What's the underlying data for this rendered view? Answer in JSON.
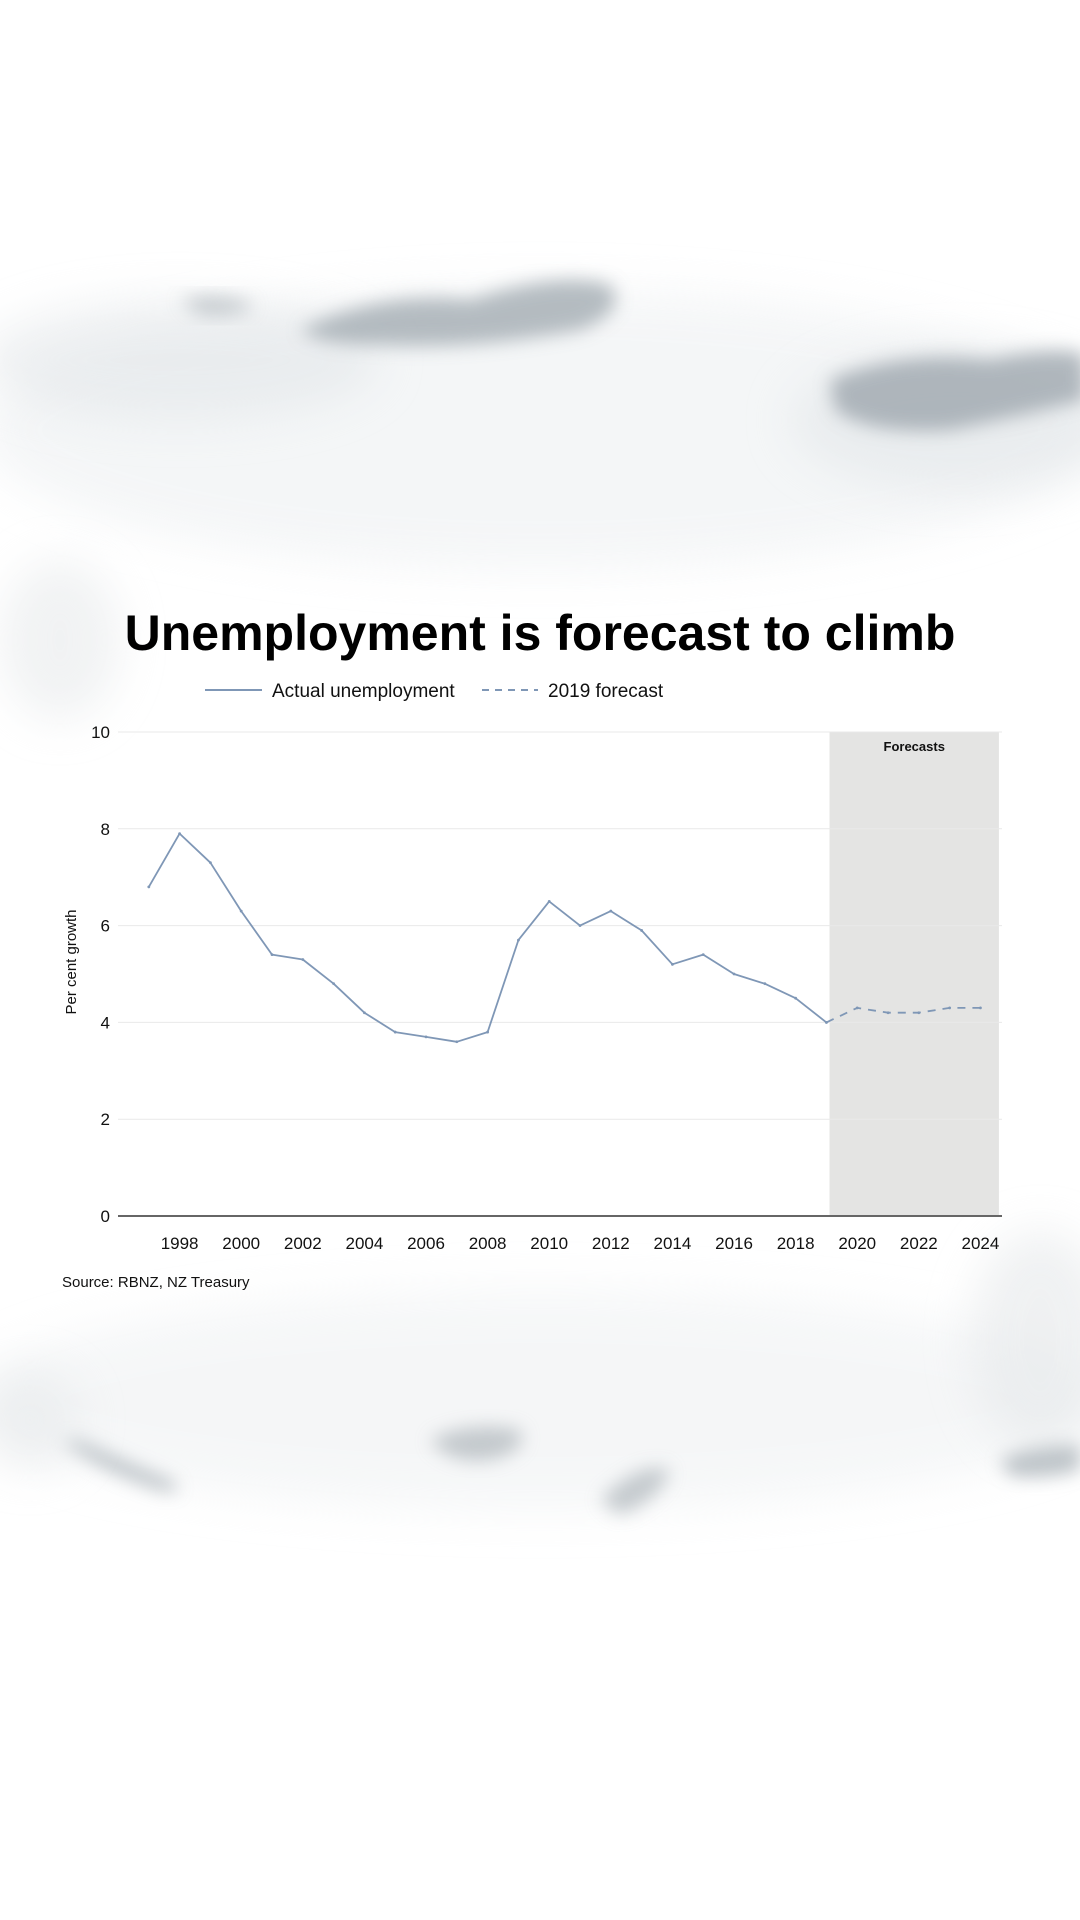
{
  "chart_data": {
    "type": "line",
    "title": "Unemployment is forecast to climb",
    "ylabel": "Per cent growth",
    "xlabel": "",
    "ylim": [
      0,
      10
    ],
    "xlim": [
      1996,
      2024.7
    ],
    "y_ticks": [
      0,
      2,
      4,
      6,
      8,
      10
    ],
    "x_ticks": [
      1998,
      2000,
      2002,
      2004,
      2006,
      2008,
      2010,
      2012,
      2014,
      2016,
      2018,
      2020,
      2022,
      2024
    ],
    "grid": true,
    "legend_position": "top",
    "shaded_region": {
      "label": "Forecasts",
      "x_start": 2019.1,
      "x_end": 2024.6,
      "color": "#e4e4e3"
    },
    "series": [
      {
        "name": "Actual unemployment",
        "style": "solid",
        "color": "#7f97b6",
        "x": [
          1997,
          1998,
          1999,
          2000,
          2001,
          2002,
          2003,
          2004,
          2005,
          2006,
          2007,
          2008,
          2009,
          2010,
          2011,
          2012,
          2013,
          2014,
          2015,
          2016,
          2017,
          2018,
          2019
        ],
        "y": [
          6.8,
          7.9,
          7.3,
          6.3,
          5.4,
          5.3,
          4.8,
          4.2,
          3.8,
          3.7,
          3.6,
          3.8,
          5.7,
          6.5,
          6.0,
          6.3,
          5.9,
          5.2,
          5.4,
          5.0,
          4.8,
          4.5,
          4.0
        ]
      },
      {
        "name": "2019 forecast",
        "style": "dashed",
        "color": "#7f97b6",
        "x": [
          2019,
          2020,
          2021,
          2022,
          2023,
          2024
        ],
        "y": [
          4.0,
          4.3,
          4.2,
          4.2,
          4.3,
          4.3
        ]
      }
    ],
    "source": "Source: RBNZ, NZ Treasury"
  },
  "colors": {
    "line": "#7f97b6",
    "band": "#e4e4e3",
    "grid": "#e9e9e9",
    "axis": "#666666",
    "wash": "#aeb6bd"
  }
}
